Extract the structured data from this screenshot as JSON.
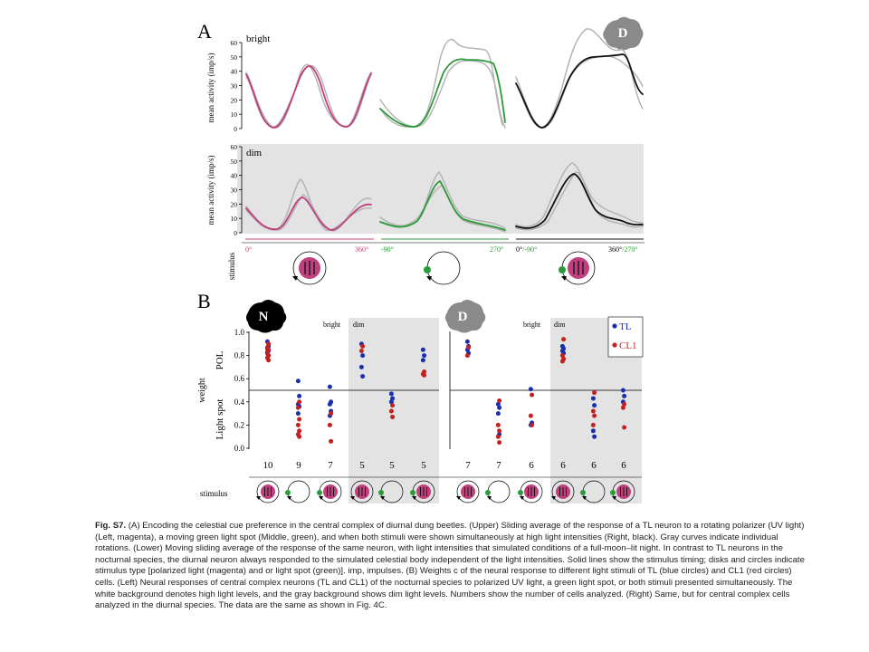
{
  "panelA": {
    "letter": "A",
    "badge": "D",
    "ylabel": "mean activity (imp/s)",
    "yticks": [
      "0",
      "10",
      "20",
      "30",
      "40",
      "50",
      "60"
    ],
    "row_bright": "bright",
    "row_dim": "dim",
    "stimulus_label": "stimulus",
    "axis_labels": {
      "pol_start": "0°",
      "pol_end": "360°",
      "spot_start": "-90°",
      "spot_end": "270°",
      "both_start_a": "0°",
      "both_start_b": "/-90°",
      "both_end_a": "360°",
      "both_end_b": "/270°"
    },
    "colors": {
      "pol": "#c0407e",
      "spot": "#2a9a3a",
      "both": "#111111",
      "gray": "#b4b4b4",
      "dim_bg": "#e3e3e3"
    }
  },
  "panelB": {
    "letter": "B",
    "badge_left": "N",
    "badge_right": "D",
    "ylabel_weight": "weight",
    "ylabel_pol": "POL",
    "ylabel_spot": "Light spot",
    "yticks": [
      "0.0",
      "0.2",
      "0.4",
      "0.6",
      "0.8",
      "1.0"
    ],
    "bright_label": "bright",
    "dim_label": "dim",
    "legend": {
      "tl": "TL",
      "cl1": "CL1",
      "tl_color": "#1a2fb0",
      "cl1_color": "#c42020"
    },
    "stimulus_label": "stimulus",
    "left_counts": [
      "10",
      "9",
      "7",
      "5",
      "5",
      "5"
    ],
    "right_counts": [
      "7",
      "7",
      "6",
      "6",
      "6",
      "6"
    ],
    "stim_types": [
      "pol",
      "spot",
      "both",
      "pol",
      "spot",
      "both"
    ],
    "left_points": [
      {
        "tl": [
          0.92,
          0.88,
          0.86,
          0.84,
          0.82,
          0.8
        ],
        "cl1": [
          0.9,
          0.87,
          0.85,
          0.83,
          0.8,
          0.78,
          0.76
        ]
      },
      {
        "tl": [
          0.58,
          0.45,
          0.38,
          0.36,
          0.3
        ],
        "cl1": [
          0.4,
          0.35,
          0.25,
          0.2,
          0.15,
          0.12,
          0.1
        ]
      },
      {
        "tl": [
          0.53,
          0.4,
          0.38,
          0.32,
          0.28
        ],
        "cl1": [
          0.3,
          0.2,
          0.06
        ]
      },
      {
        "tl": [
          0.9,
          0.8,
          0.7,
          0.62
        ],
        "cl1": [
          0.88,
          0.84
        ]
      },
      {
        "tl": [
          0.47,
          0.43,
          0.4
        ],
        "cl1": [
          0.37,
          0.32,
          0.27
        ]
      },
      {
        "tl": [
          0.85,
          0.8,
          0.76
        ],
        "cl1": [
          0.66,
          0.64,
          0.63
        ]
      }
    ],
    "right_points": [
      {
        "tl": [
          0.92,
          0.88,
          0.85,
          0.82
        ],
        "cl1": [
          0.87,
          0.8
        ]
      },
      {
        "tl": [
          0.38,
          0.35,
          0.3,
          0.12
        ],
        "cl1": [
          0.41,
          0.2,
          0.15,
          0.1,
          0.05
        ]
      },
      {
        "tl": [
          0.51,
          0.22,
          0.2
        ],
        "cl1": [
          0.46,
          0.28,
          0.2
        ]
      },
      {
        "tl": [
          0.88,
          0.86,
          0.84,
          0.82
        ],
        "cl1": [
          0.94,
          0.8,
          0.77,
          0.75
        ]
      },
      {
        "tl": [
          0.43,
          0.37,
          0.15,
          0.1
        ],
        "cl1": [
          0.48,
          0.32,
          0.28,
          0.2
        ]
      },
      {
        "tl": [
          0.5,
          0.45,
          0.4
        ],
        "cl1": [
          0.38,
          0.35,
          0.18
        ]
      }
    ]
  },
  "caption": {
    "label": "Fig. S7.",
    "text": "(A) Encoding the celestial cue preference in the central complex of diurnal dung beetles. (Upper) Sliding average of the response of a TL neuron to a rotating polarizer (UV light) (Left, magenta), a moving green light spot (Middle, green), and when both stimuli were shown simultaneously at high light intensities (Right, black). Gray curves indicate individual rotations. (Lower) Moving sliding average of the response of the same neuron, with light intensities that simulated conditions of a full-moon–lit night. In contrast to TL neurons in the nocturnal species, the diurnal neuron always responded to the simulated celestial body independent of the light intensities. Solid lines show the stimulus timing; disks and circles indicate stimulus type [polarized light (magenta) and or light spot (green)]. imp, impulses. (B) Weights c of the neural response to different light stimuli of TL (blue circles) and CL1 (red circles) cells. (Left) Neural responses of central complex neurons (TL and CL1) of the nocturnal species to polarized UV light, a green light spot, or both stimuli presented simultaneously. The white background denotes high light levels, and the gray background shows dim light levels. Numbers show the number of cells analyzed. (Right) Same, but for central complex cells analyzed in the diurnal species. The data are the same as shown in Fig. 4C."
  }
}
